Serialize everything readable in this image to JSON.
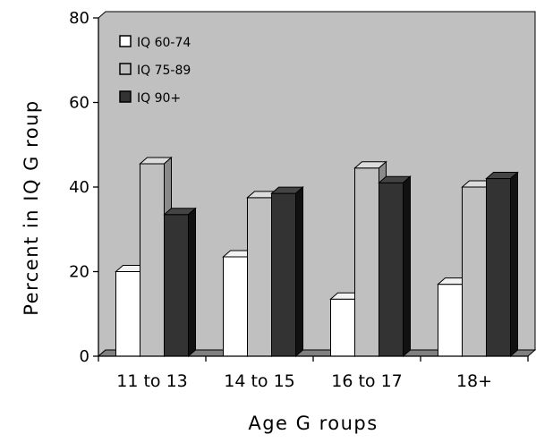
{
  "chart_data": {
    "type": "bar",
    "title": "",
    "xlabel": "Age G roups",
    "ylabel": "Percent in IQ G roup",
    "categories": [
      "11 to 13",
      "14 to 15",
      "16 to 17",
      "18+"
    ],
    "series": [
      {
        "name": "IQ 60-74",
        "color": "#ffffff",
        "values": [
          20,
          23.5,
          13.5,
          17
        ]
      },
      {
        "name": "IQ 75-89",
        "color": "#c0c0c0",
        "values": [
          45.5,
          37.5,
          44.5,
          40
        ]
      },
      {
        "name": "IQ 90+",
        "color": "#333333",
        "values": [
          33.5,
          38.5,
          41,
          42
        ]
      }
    ],
    "ylim": [
      0,
      80
    ],
    "yticks": [
      "0",
      "20",
      "40",
      "60",
      "80"
    ],
    "legend_position": "top-left",
    "grid": false,
    "plot_background": "#c0c0c0",
    "floor_color": "#808080"
  }
}
